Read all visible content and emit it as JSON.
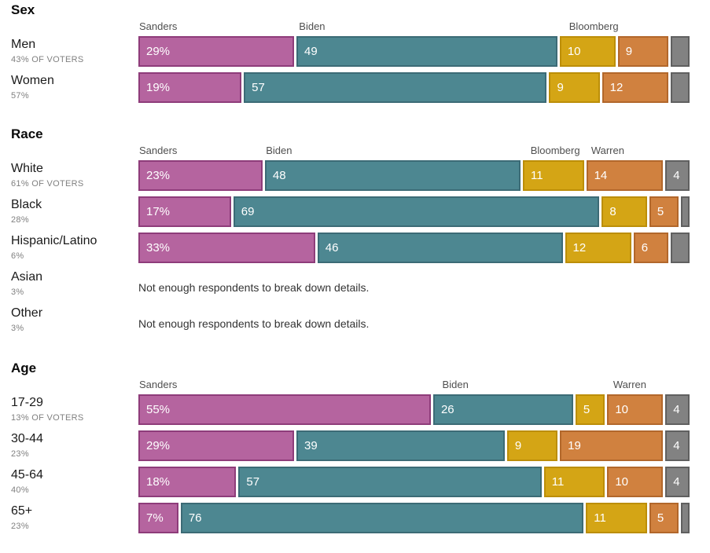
{
  "colors": {
    "sanders": {
      "fill": "#b5649f",
      "border": "#8e3c7a"
    },
    "biden": {
      "fill": "#4d8791",
      "border": "#3c6b76"
    },
    "bloomberg": {
      "fill": "#d4a515",
      "border": "#bc8e08"
    },
    "warren": {
      "fill": "#d0813f",
      "border": "#b2672b"
    },
    "other": {
      "fill": "#828282",
      "border": "#606060"
    }
  },
  "chart_data": {
    "type": "bar",
    "variant": "stacked-horizontal",
    "unit": "percent",
    "xlim": [
      0,
      100
    ],
    "candidates": [
      "Sanders",
      "Biden",
      "Bloomberg",
      "Warren",
      "Other"
    ],
    "note_text": "Not enough respondents to break down details.",
    "sections": [
      {
        "title": "Sex",
        "column_labels": [
          {
            "text": "Sanders",
            "segment": 0
          },
          {
            "text": "Biden",
            "segment": 1
          },
          {
            "text": "Bloomberg",
            "segment": 2
          }
        ],
        "rows": [
          {
            "label": "Men",
            "sublabel": "43% OF VOTERS",
            "segments": [
              {
                "candidate": "sanders",
                "value": 29,
                "label": "29%"
              },
              {
                "candidate": "biden",
                "value": 49,
                "label": "49"
              },
              {
                "candidate": "bloomberg",
                "value": 10,
                "label": "10"
              },
              {
                "candidate": "warren",
                "value": 9,
                "label": "9"
              },
              {
                "candidate": "other",
                "value": 3,
                "label": ""
              }
            ]
          },
          {
            "label": "Women",
            "sublabel": "57%",
            "segments": [
              {
                "candidate": "sanders",
                "value": 19,
                "label": "19%"
              },
              {
                "candidate": "biden",
                "value": 57,
                "label": "57"
              },
              {
                "candidate": "bloomberg",
                "value": 9,
                "label": "9"
              },
              {
                "candidate": "warren",
                "value": 12,
                "label": "12"
              },
              {
                "candidate": "other",
                "value": 3,
                "label": ""
              }
            ]
          }
        ]
      },
      {
        "title": "Race",
        "column_labels": [
          {
            "text": "Sanders",
            "segment": 0
          },
          {
            "text": "Biden",
            "segment": 1
          },
          {
            "text": "Bloomberg",
            "segment": 2
          },
          {
            "text": "Warren",
            "segment": 3
          }
        ],
        "rows": [
          {
            "label": "White",
            "sublabel": "61% OF VOTERS",
            "segments": [
              {
                "candidate": "sanders",
                "value": 23,
                "label": "23%"
              },
              {
                "candidate": "biden",
                "value": 48,
                "label": "48"
              },
              {
                "candidate": "bloomberg",
                "value": 11,
                "label": "11"
              },
              {
                "candidate": "warren",
                "value": 14,
                "label": "14"
              },
              {
                "candidate": "other",
                "value": 4,
                "label": "4"
              }
            ]
          },
          {
            "label": "Black",
            "sublabel": "28%",
            "segments": [
              {
                "candidate": "sanders",
                "value": 17,
                "label": "17%"
              },
              {
                "candidate": "biden",
                "value": 69,
                "label": "69"
              },
              {
                "candidate": "bloomberg",
                "value": 8,
                "label": "8"
              },
              {
                "candidate": "warren",
                "value": 5,
                "label": "5"
              },
              {
                "candidate": "other",
                "value": 1,
                "label": ""
              }
            ]
          },
          {
            "label": "Hispanic/Latino",
            "sublabel": "6%",
            "segments": [
              {
                "candidate": "sanders",
                "value": 33,
                "label": "33%"
              },
              {
                "candidate": "biden",
                "value": 46,
                "label": "46"
              },
              {
                "candidate": "bloomberg",
                "value": 12,
                "label": "12"
              },
              {
                "candidate": "warren",
                "value": 6,
                "label": "6"
              },
              {
                "candidate": "other",
                "value": 3,
                "label": ""
              }
            ]
          },
          {
            "label": "Asian",
            "sublabel": "3%",
            "note": "Not enough respondents to break down details."
          },
          {
            "label": "Other",
            "sublabel": "3%",
            "note": "Not enough respondents to break down details."
          }
        ]
      },
      {
        "title": "Age",
        "column_labels": [
          {
            "text": "Sanders",
            "segment": 0
          },
          {
            "text": "Biden",
            "segment": 1
          },
          {
            "text": "Warren",
            "segment": 3
          }
        ],
        "rows": [
          {
            "label": "17-29",
            "sublabel": "13% OF VOTERS",
            "segments": [
              {
                "candidate": "sanders",
                "value": 55,
                "label": "55%"
              },
              {
                "candidate": "biden",
                "value": 26,
                "label": "26"
              },
              {
                "candidate": "bloomberg",
                "value": 5,
                "label": "5"
              },
              {
                "candidate": "warren",
                "value": 10,
                "label": "10"
              },
              {
                "candidate": "other",
                "value": 4,
                "label": "4"
              }
            ]
          },
          {
            "label": "30-44",
            "sublabel": "23%",
            "segments": [
              {
                "candidate": "sanders",
                "value": 29,
                "label": "29%"
              },
              {
                "candidate": "biden",
                "value": 39,
                "label": "39"
              },
              {
                "candidate": "bloomberg",
                "value": 9,
                "label": "9"
              },
              {
                "candidate": "warren",
                "value": 19,
                "label": "19"
              },
              {
                "candidate": "other",
                "value": 4,
                "label": "4"
              }
            ]
          },
          {
            "label": "45-64",
            "sublabel": "40%",
            "segments": [
              {
                "candidate": "sanders",
                "value": 18,
                "label": "18%"
              },
              {
                "candidate": "biden",
                "value": 57,
                "label": "57"
              },
              {
                "candidate": "bloomberg",
                "value": 11,
                "label": "11"
              },
              {
                "candidate": "warren",
                "value": 10,
                "label": "10"
              },
              {
                "candidate": "other",
                "value": 4,
                "label": "4"
              }
            ]
          },
          {
            "label": "65+",
            "sublabel": "23%",
            "segments": [
              {
                "candidate": "sanders",
                "value": 7,
                "label": "7%"
              },
              {
                "candidate": "biden",
                "value": 76,
                "label": "76"
              },
              {
                "candidate": "bloomberg",
                "value": 11,
                "label": "11"
              },
              {
                "candidate": "warren",
                "value": 5,
                "label": "5"
              },
              {
                "candidate": "other",
                "value": 1,
                "label": ""
              }
            ]
          }
        ]
      }
    ]
  }
}
